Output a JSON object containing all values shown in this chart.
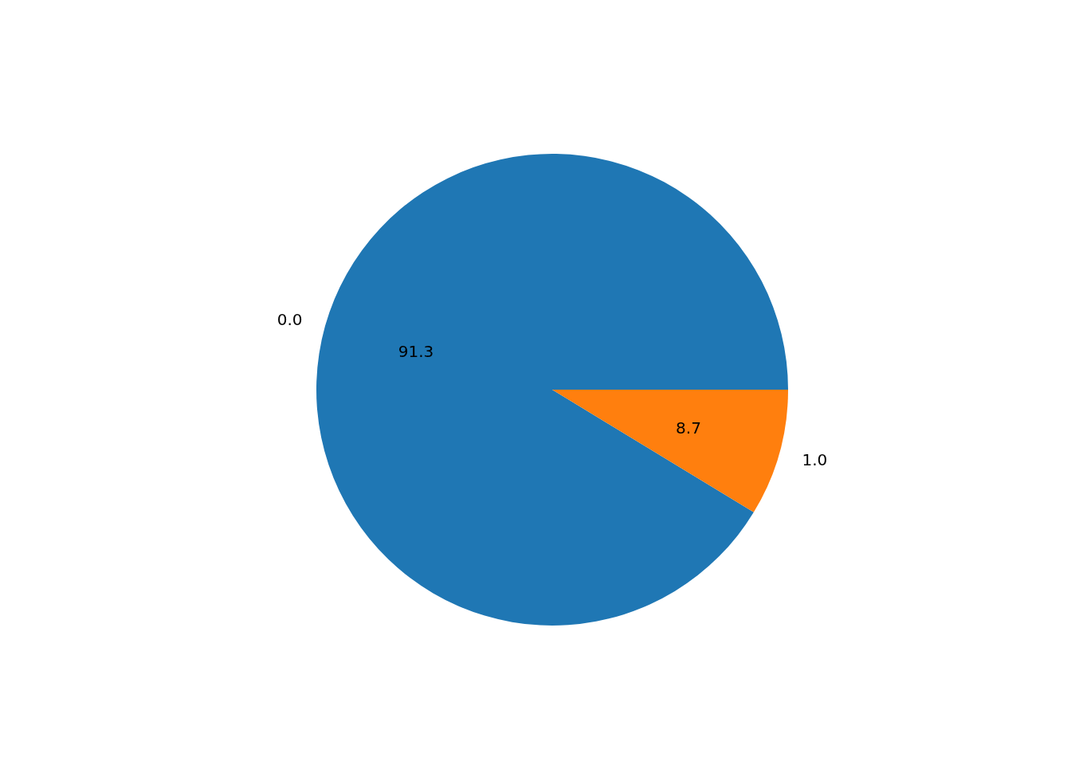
{
  "chart_data": {
    "type": "pie",
    "categories": [
      "0.0",
      "1.0"
    ],
    "values": [
      91.3,
      8.7
    ],
    "colors": [
      "#1f77b4",
      "#ff7f0e"
    ],
    "data_labels": true
  }
}
